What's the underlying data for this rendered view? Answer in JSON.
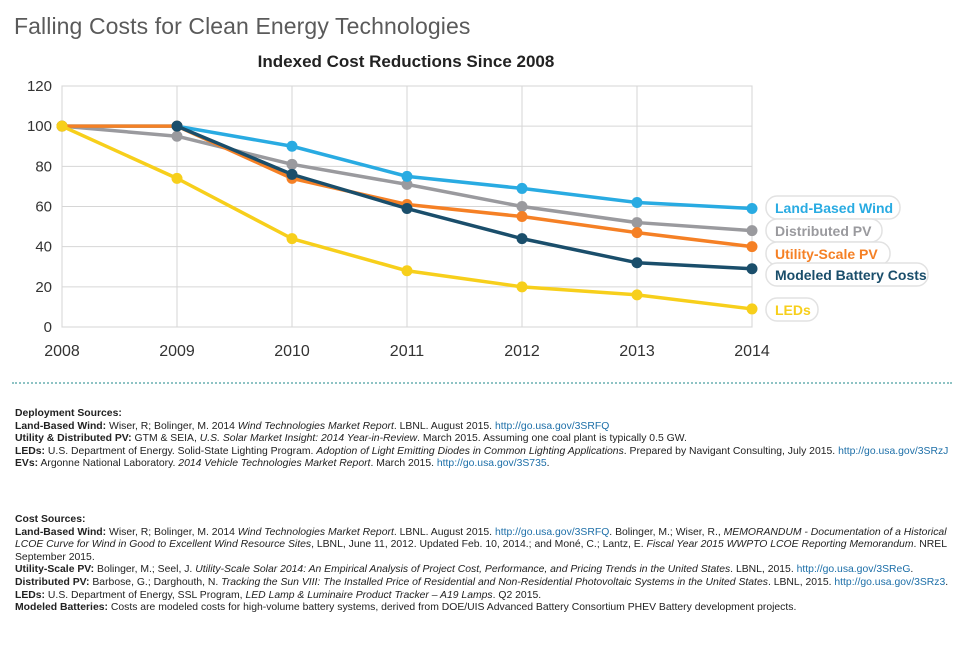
{
  "header": {
    "title": "Falling Costs for Clean Energy Technologies"
  },
  "chart_data": {
    "type": "line",
    "title": "Indexed Cost Reductions Since 2008",
    "xlabel": "",
    "ylabel": "",
    "x": [
      2008,
      2009,
      2010,
      2011,
      2012,
      2013,
      2014
    ],
    "ylim": [
      0,
      120
    ],
    "yticks": [
      0,
      20,
      40,
      60,
      80,
      100,
      120
    ],
    "grid": true,
    "legend": "right",
    "series": [
      {
        "name": "Land-Based Wind",
        "color": "#29abe2",
        "x": [
          2008,
          2009,
          2010,
          2011,
          2012,
          2013,
          2014
        ],
        "values": [
          100,
          100,
          90,
          75,
          69,
          62,
          59
        ]
      },
      {
        "name": "Distributed PV",
        "color": "#9a9a9e",
        "x": [
          2008,
          2009,
          2010,
          2011,
          2012,
          2013,
          2014
        ],
        "values": [
          100,
          95,
          81,
          71,
          60,
          52,
          48
        ]
      },
      {
        "name": "Utility-Scale PV",
        "color": "#f58025",
        "x": [
          2008,
          2009,
          2010,
          2011,
          2012,
          2013,
          2014
        ],
        "values": [
          100,
          100,
          74,
          61,
          55,
          47,
          40
        ]
      },
      {
        "name": "Modeled Battery Costs",
        "color": "#1a4e6b",
        "x": [
          2009,
          2010,
          2011,
          2012,
          2013,
          2014
        ],
        "values": [
          100,
          76,
          59,
          44,
          32,
          29
        ]
      },
      {
        "name": "LEDs",
        "color": "#f7cf1b",
        "x": [
          2008,
          2009,
          2010,
          2011,
          2012,
          2013,
          2014
        ],
        "values": [
          100,
          74,
          44,
          28,
          20,
          16,
          9
        ]
      }
    ]
  },
  "sources": {
    "deployment": {
      "heading": "Deployment Sources:",
      "lines": [
        {
          "label": "Land-Based Wind:",
          "segments": [
            {
              "t": "Wiser, R; Bolinger, M. 2014 "
            },
            {
              "t": "Wind Technologies Market Report",
              "i": true
            },
            {
              "t": ". LBNL. August 2015. "
            },
            {
              "t": "http://go.usa.gov/3SRFQ",
              "link": true
            }
          ]
        },
        {
          "label": "Utility & Distributed PV:",
          "segments": [
            {
              "t": "GTM & SEIA, "
            },
            {
              "t": "U.S. Solar Market Insight: 2014 Year-in-Review",
              "i": true
            },
            {
              "t": ". March 2015. Assuming one coal plant is typically 0.5 GW."
            }
          ]
        },
        {
          "label": "LEDs:",
          "segments": [
            {
              "t": "U.S. Department of Energy. Solid-State Lighting Program. "
            },
            {
              "t": "Adoption of Light Emitting Diodes in Common Lighting Applications",
              "i": true
            },
            {
              "t": ". Prepared by Navigant Consulting, July 2015. "
            },
            {
              "t": "http://go.usa.gov/3SRzJ",
              "link": true
            }
          ]
        },
        {
          "label": "EVs:",
          "segments": [
            {
              "t": "Argonne National Laboratory. "
            },
            {
              "t": "2014 Vehicle Technologies Market Report",
              "i": true
            },
            {
              "t": ". March 2015. "
            },
            {
              "t": "http://go.usa.gov/3S735",
              "link": true
            },
            {
              "t": "."
            }
          ]
        }
      ]
    },
    "cost": {
      "heading": "Cost Sources:",
      "lines": [
        {
          "label": "Land-Based Wind:",
          "segments": [
            {
              "t": "Wiser, R; Bolinger, M. 2014 "
            },
            {
              "t": "Wind Technologies Market Report",
              "i": true
            },
            {
              "t": ". LBNL. August 2015. "
            },
            {
              "t": "http://go.usa.gov/3SRFQ",
              "link": true
            },
            {
              "t": ". Bolinger, M.; Wiser, R., "
            },
            {
              "t": "MEMORANDUM - Documentation of a Historical LCOE Curve for Wind in Good to Excellent Wind Resource Sites",
              "i": true
            },
            {
              "t": ", LBNL, June 11, 2012. Updated Feb. 10, 2014.; and Moné, C.; Lantz, E. "
            },
            {
              "t": "Fiscal Year 2015 WWPTO LCOE Reporting Memorandum",
              "i": true
            },
            {
              "t": ". NREL September 2015."
            }
          ]
        },
        {
          "label": "Utility-Scale PV:",
          "segments": [
            {
              "t": "Bolinger, M.; Seel, J. "
            },
            {
              "t": "Utility-Scale Solar 2014: An Empirical Analysis of Project Cost, Performance, and Pricing Trends in the United States",
              "i": true
            },
            {
              "t": ". LBNL, 2015. "
            },
            {
              "t": "http://go.usa.gov/3SReG",
              "link": true
            },
            {
              "t": "."
            }
          ]
        },
        {
          "label": "Distributed PV:",
          "segments": [
            {
              "t": "Barbose, G.; Darghouth, N. "
            },
            {
              "t": "Tracking the Sun VIII: The Installed Price of Residential and Non-Residential Photovoltaic Systems in the United States",
              "i": true
            },
            {
              "t": ". LBNL, 2015. "
            },
            {
              "t": "http://go.usa.gov/3SRz3",
              "link": true
            },
            {
              "t": "."
            }
          ]
        },
        {
          "label": "LEDs:",
          "segments": [
            {
              "t": "U.S. Department of Energy, SSL Program, "
            },
            {
              "t": "LED Lamp & Luminaire Product Tracker – A19 Lamps",
              "i": true
            },
            {
              "t": ". Q2 2015."
            }
          ]
        },
        {
          "label": "Modeled Batteries:",
          "segments": [
            {
              "t": "Costs are modeled costs for high-volume battery systems, derived from DOE/UIS Advanced Battery Consortium PHEV Battery development projects."
            }
          ]
        }
      ]
    }
  }
}
